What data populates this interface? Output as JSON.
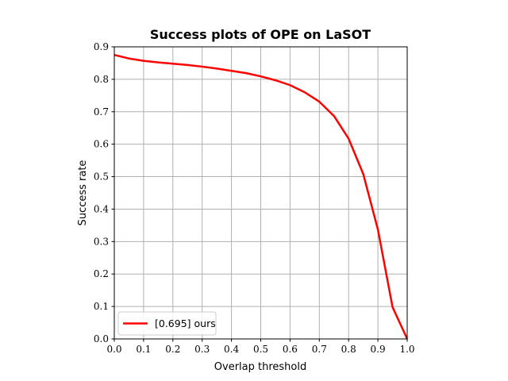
{
  "chart_data": {
    "type": "line",
    "title": "Success plots of OPE on LaSOT",
    "xlabel": "Overlap threshold",
    "ylabel": "Success rate",
    "xlim": [
      0,
      1
    ],
    "ylim": [
      0,
      0.9
    ],
    "x_ticks": [
      "0.0",
      "0.1",
      "0.2",
      "0.3",
      "0.4",
      "0.5",
      "0.6",
      "0.7",
      "0.8",
      "0.9",
      "1.0"
    ],
    "y_ticks": [
      "0.0",
      "0.1",
      "0.2",
      "0.3",
      "0.4",
      "0.5",
      "0.6",
      "0.7",
      "0.8",
      "0.9"
    ],
    "grid": true,
    "legend_position": "lower-left",
    "series": [
      {
        "name": "[0.695] ours",
        "color": "#ff0000",
        "x": [
          0.0,
          0.05,
          0.1,
          0.15,
          0.2,
          0.25,
          0.3,
          0.35,
          0.4,
          0.45,
          0.5,
          0.55,
          0.6,
          0.65,
          0.7,
          0.75,
          0.8,
          0.85,
          0.9,
          0.95,
          1.0
        ],
        "y": [
          0.875,
          0.864,
          0.857,
          0.852,
          0.848,
          0.844,
          0.839,
          0.833,
          0.826,
          0.819,
          0.809,
          0.797,
          0.782,
          0.76,
          0.731,
          0.687,
          0.617,
          0.508,
          0.337,
          0.098,
          0.0
        ]
      }
    ]
  }
}
